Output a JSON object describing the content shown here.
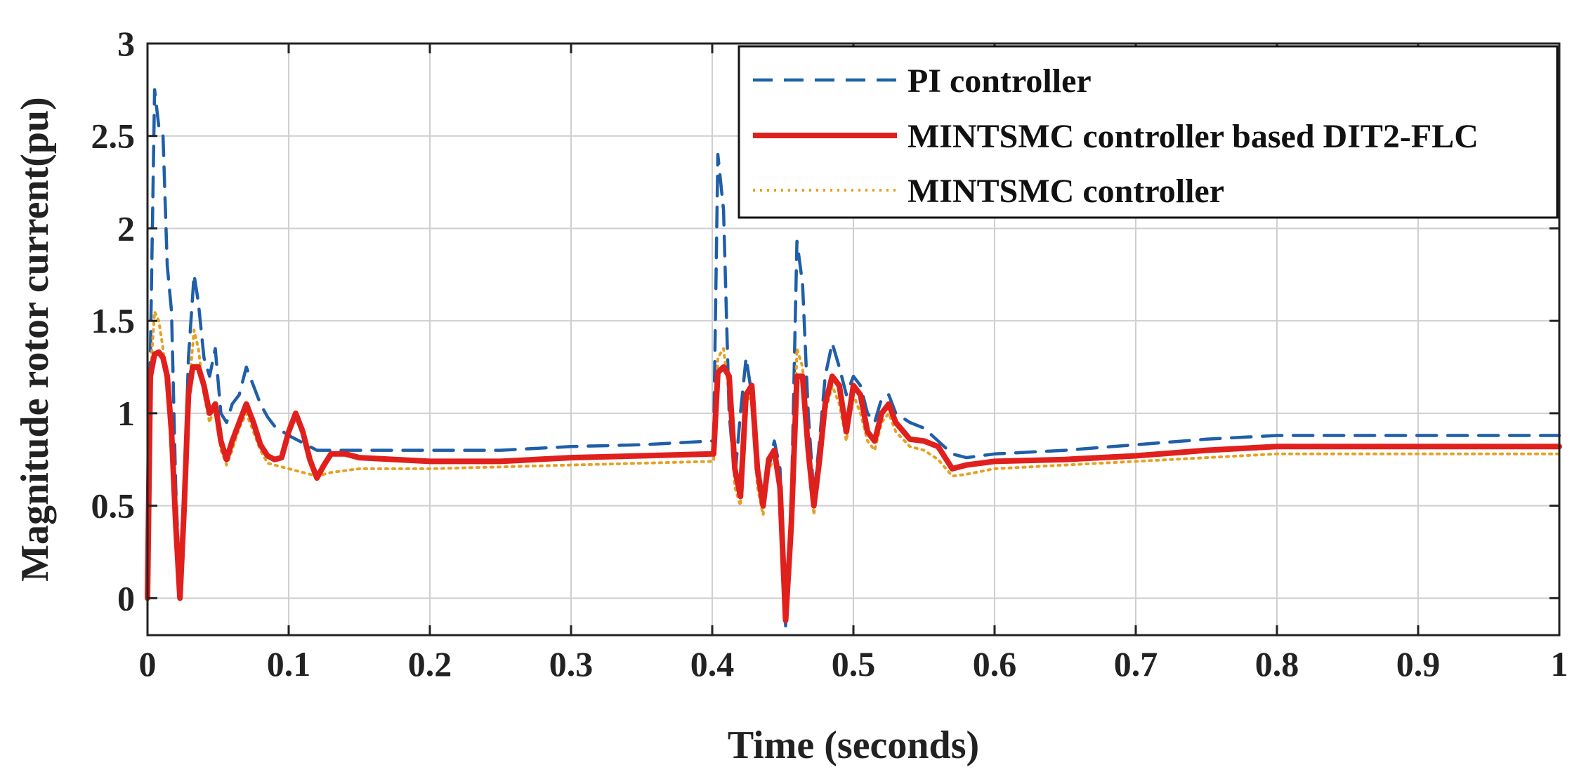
{
  "chart_data": {
    "type": "line",
    "title": "",
    "xlabel": "Time (seconds)",
    "ylabel": "Magnitude rotor current(pu)",
    "xlim": [
      0,
      1
    ],
    "ylim": [
      -0.2,
      3
    ],
    "grid": true,
    "legend_position": "top-right",
    "x_ticks": [
      0,
      0.1,
      0.2,
      0.3,
      0.4,
      0.5,
      0.6,
      0.7,
      0.8,
      0.9,
      1
    ],
    "x_tick_labels": [
      "0",
      "0.1",
      "0.2",
      "0.3",
      "0.4",
      "0.5",
      "0.6",
      "0.7",
      "0.8",
      "0.9",
      "1"
    ],
    "y_ticks": [
      0,
      0.5,
      1,
      1.5,
      2,
      2.5,
      3
    ],
    "y_tick_labels": [
      "0",
      "0.5",
      "1",
      "1.5",
      "2",
      "2.5",
      "3"
    ],
    "series": [
      {
        "name": "PI controller",
        "color": "#1f5fa8",
        "style": "dashed",
        "points": [
          [
            0,
            0
          ],
          [
            0.002,
            1.3
          ],
          [
            0.005,
            2.75
          ],
          [
            0.008,
            2.55
          ],
          [
            0.011,
            2.5
          ],
          [
            0.014,
            1.8
          ],
          [
            0.017,
            1.55
          ],
          [
            0.02,
            0.6
          ],
          [
            0.023,
            0.05
          ],
          [
            0.026,
            0.6
          ],
          [
            0.029,
            1.3
          ],
          [
            0.033,
            1.75
          ],
          [
            0.036,
            1.6
          ],
          [
            0.04,
            1.3
          ],
          [
            0.044,
            1.2
          ],
          [
            0.048,
            1.35
          ],
          [
            0.052,
            1.0
          ],
          [
            0.056,
            0.95
          ],
          [
            0.06,
            1.05
          ],
          [
            0.065,
            1.1
          ],
          [
            0.07,
            1.25
          ],
          [
            0.075,
            1.15
          ],
          [
            0.08,
            1.05
          ],
          [
            0.085,
            0.98
          ],
          [
            0.09,
            0.93
          ],
          [
            0.1,
            0.88
          ],
          [
            0.11,
            0.84
          ],
          [
            0.12,
            0.8
          ],
          [
            0.13,
            0.8
          ],
          [
            0.15,
            0.8
          ],
          [
            0.2,
            0.8
          ],
          [
            0.25,
            0.8
          ],
          [
            0.3,
            0.82
          ],
          [
            0.35,
            0.83
          ],
          [
            0.4,
            0.85
          ],
          [
            0.401,
            0.85
          ],
          [
            0.404,
            2.4
          ],
          [
            0.408,
            2.1
          ],
          [
            0.412,
            1.0
          ],
          [
            0.416,
            0.65
          ],
          [
            0.42,
            1.0
          ],
          [
            0.424,
            1.3
          ],
          [
            0.428,
            1.1
          ],
          [
            0.432,
            0.65
          ],
          [
            0.436,
            0.55
          ],
          [
            0.44,
            0.7
          ],
          [
            0.444,
            0.85
          ],
          [
            0.448,
            0.7
          ],
          [
            0.452,
            -0.15
          ],
          [
            0.456,
            0.5
          ],
          [
            0.46,
            1.93
          ],
          [
            0.464,
            1.7
          ],
          [
            0.468,
            1.0
          ],
          [
            0.472,
            0.55
          ],
          [
            0.476,
            0.85
          ],
          [
            0.48,
            1.2
          ],
          [
            0.485,
            1.38
          ],
          [
            0.49,
            1.25
          ],
          [
            0.495,
            1.1
          ],
          [
            0.5,
            1.2
          ],
          [
            0.505,
            1.15
          ],
          [
            0.51,
            1.0
          ],
          [
            0.515,
            0.95
          ],
          [
            0.52,
            1.08
          ],
          [
            0.525,
            1.1
          ],
          [
            0.53,
            1.0
          ],
          [
            0.54,
            0.95
          ],
          [
            0.55,
            0.92
          ],
          [
            0.56,
            0.85
          ],
          [
            0.57,
            0.78
          ],
          [
            0.58,
            0.76
          ],
          [
            0.6,
            0.78
          ],
          [
            0.65,
            0.8
          ],
          [
            0.7,
            0.83
          ],
          [
            0.75,
            0.86
          ],
          [
            0.8,
            0.88
          ],
          [
            0.85,
            0.88
          ],
          [
            0.9,
            0.88
          ],
          [
            0.95,
            0.88
          ],
          [
            1.0,
            0.88
          ]
        ]
      },
      {
        "name": "MINTSMC controller based DIT2-FLC",
        "color": "#e0201c",
        "style": "solid",
        "points": [
          [
            0,
            0
          ],
          [
            0.002,
            1.2
          ],
          [
            0.005,
            1.32
          ],
          [
            0.008,
            1.33
          ],
          [
            0.011,
            1.3
          ],
          [
            0.014,
            1.2
          ],
          [
            0.017,
            0.9
          ],
          [
            0.02,
            0.4
          ],
          [
            0.023,
            0.0
          ],
          [
            0.026,
            0.5
          ],
          [
            0.029,
            1.1
          ],
          [
            0.032,
            1.25
          ],
          [
            0.036,
            1.25
          ],
          [
            0.04,
            1.15
          ],
          [
            0.044,
            1.0
          ],
          [
            0.048,
            1.05
          ],
          [
            0.052,
            0.85
          ],
          [
            0.056,
            0.75
          ],
          [
            0.06,
            0.85
          ],
          [
            0.065,
            0.95
          ],
          [
            0.07,
            1.05
          ],
          [
            0.075,
            0.95
          ],
          [
            0.08,
            0.83
          ],
          [
            0.085,
            0.77
          ],
          [
            0.09,
            0.75
          ],
          [
            0.095,
            0.76
          ],
          [
            0.1,
            0.9
          ],
          [
            0.105,
            1.0
          ],
          [
            0.11,
            0.9
          ],
          [
            0.115,
            0.75
          ],
          [
            0.12,
            0.65
          ],
          [
            0.125,
            0.72
          ],
          [
            0.13,
            0.78
          ],
          [
            0.14,
            0.78
          ],
          [
            0.15,
            0.76
          ],
          [
            0.2,
            0.74
          ],
          [
            0.25,
            0.74
          ],
          [
            0.3,
            0.76
          ],
          [
            0.35,
            0.77
          ],
          [
            0.4,
            0.78
          ],
          [
            0.401,
            0.78
          ],
          [
            0.404,
            1.22
          ],
          [
            0.408,
            1.25
          ],
          [
            0.412,
            1.2
          ],
          [
            0.416,
            0.7
          ],
          [
            0.42,
            0.55
          ],
          [
            0.424,
            1.1
          ],
          [
            0.428,
            1.15
          ],
          [
            0.432,
            0.7
          ],
          [
            0.436,
            0.5
          ],
          [
            0.44,
            0.75
          ],
          [
            0.444,
            0.8
          ],
          [
            0.448,
            0.6
          ],
          [
            0.452,
            -0.12
          ],
          [
            0.456,
            0.4
          ],
          [
            0.46,
            1.2
          ],
          [
            0.464,
            1.2
          ],
          [
            0.468,
            0.8
          ],
          [
            0.472,
            0.5
          ],
          [
            0.476,
            0.75
          ],
          [
            0.48,
            1.05
          ],
          [
            0.485,
            1.2
          ],
          [
            0.49,
            1.15
          ],
          [
            0.495,
            0.9
          ],
          [
            0.5,
            1.15
          ],
          [
            0.505,
            1.1
          ],
          [
            0.51,
            0.9
          ],
          [
            0.515,
            0.85
          ],
          [
            0.52,
            1.0
          ],
          [
            0.525,
            1.05
          ],
          [
            0.53,
            0.95
          ],
          [
            0.54,
            0.86
          ],
          [
            0.55,
            0.85
          ],
          [
            0.56,
            0.82
          ],
          [
            0.57,
            0.7
          ],
          [
            0.58,
            0.72
          ],
          [
            0.6,
            0.74
          ],
          [
            0.65,
            0.75
          ],
          [
            0.7,
            0.77
          ],
          [
            0.75,
            0.8
          ],
          [
            0.8,
            0.82
          ],
          [
            0.85,
            0.82
          ],
          [
            0.9,
            0.82
          ],
          [
            0.95,
            0.82
          ],
          [
            1.0,
            0.82
          ]
        ]
      },
      {
        "name": "MINTSMC controller",
        "color": "#e8a020",
        "style": "dotted",
        "points": [
          [
            0,
            0
          ],
          [
            0.002,
            1.2
          ],
          [
            0.005,
            1.55
          ],
          [
            0.008,
            1.5
          ],
          [
            0.011,
            1.35
          ],
          [
            0.014,
            1.1
          ],
          [
            0.017,
            0.8
          ],
          [
            0.02,
            0.35
          ],
          [
            0.023,
            0.0
          ],
          [
            0.026,
            0.5
          ],
          [
            0.029,
            1.1
          ],
          [
            0.033,
            1.45
          ],
          [
            0.036,
            1.35
          ],
          [
            0.04,
            1.1
          ],
          [
            0.044,
            0.95
          ],
          [
            0.048,
            1.05
          ],
          [
            0.052,
            0.8
          ],
          [
            0.056,
            0.72
          ],
          [
            0.06,
            0.8
          ],
          [
            0.065,
            0.92
          ],
          [
            0.07,
            1.0
          ],
          [
            0.075,
            0.9
          ],
          [
            0.08,
            0.8
          ],
          [
            0.085,
            0.73
          ],
          [
            0.09,
            0.72
          ],
          [
            0.1,
            0.7
          ],
          [
            0.11,
            0.68
          ],
          [
            0.12,
            0.66
          ],
          [
            0.13,
            0.68
          ],
          [
            0.15,
            0.7
          ],
          [
            0.2,
            0.7
          ],
          [
            0.25,
            0.71
          ],
          [
            0.3,
            0.72
          ],
          [
            0.35,
            0.73
          ],
          [
            0.4,
            0.74
          ],
          [
            0.401,
            0.74
          ],
          [
            0.404,
            1.3
          ],
          [
            0.408,
            1.35
          ],
          [
            0.412,
            1.1
          ],
          [
            0.416,
            0.6
          ],
          [
            0.42,
            0.5
          ],
          [
            0.424,
            1.05
          ],
          [
            0.428,
            1.1
          ],
          [
            0.432,
            0.6
          ],
          [
            0.436,
            0.45
          ],
          [
            0.44,
            0.7
          ],
          [
            0.444,
            0.75
          ],
          [
            0.448,
            0.55
          ],
          [
            0.452,
            -0.1
          ],
          [
            0.456,
            0.35
          ],
          [
            0.46,
            1.35
          ],
          [
            0.464,
            1.25
          ],
          [
            0.468,
            0.8
          ],
          [
            0.472,
            0.45
          ],
          [
            0.476,
            0.7
          ],
          [
            0.48,
            1.0
          ],
          [
            0.485,
            1.15
          ],
          [
            0.49,
            1.05
          ],
          [
            0.495,
            0.85
          ],
          [
            0.5,
            1.1
          ],
          [
            0.505,
            1.0
          ],
          [
            0.51,
            0.85
          ],
          [
            0.515,
            0.8
          ],
          [
            0.52,
            0.95
          ],
          [
            0.525,
            1.0
          ],
          [
            0.53,
            0.9
          ],
          [
            0.54,
            0.82
          ],
          [
            0.55,
            0.8
          ],
          [
            0.56,
            0.75
          ],
          [
            0.57,
            0.66
          ],
          [
            0.58,
            0.67
          ],
          [
            0.6,
            0.7
          ],
          [
            0.65,
            0.72
          ],
          [
            0.7,
            0.74
          ],
          [
            0.75,
            0.76
          ],
          [
            0.8,
            0.78
          ],
          [
            0.85,
            0.78
          ],
          [
            0.9,
            0.78
          ],
          [
            0.95,
            0.78
          ],
          [
            1.0,
            0.78
          ]
        ]
      }
    ]
  }
}
